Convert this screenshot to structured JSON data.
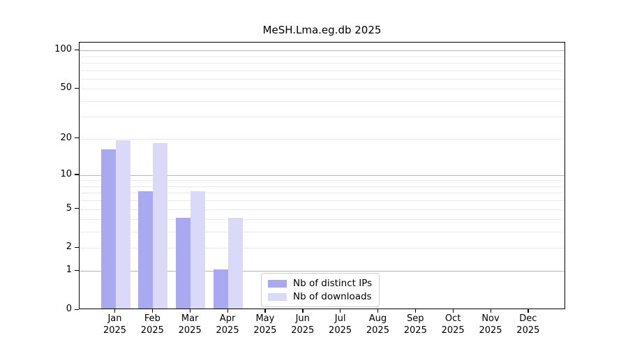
{
  "chart_data": {
    "type": "bar",
    "title": "MeSH.Lma.eg.db 2025",
    "categories": [
      "Jan",
      "Feb",
      "Mar",
      "Apr",
      "May",
      "Jun",
      "Jul",
      "Aug",
      "Sep",
      "Oct",
      "Nov",
      "Dec"
    ],
    "x_year_label": "2025",
    "series": [
      {
        "name": "Nb of distinct IPs",
        "color": "#a9a9f2",
        "values": [
          16,
          7,
          4,
          1,
          0,
          0,
          0,
          0,
          0,
          0,
          0,
          0
        ]
      },
      {
        "name": "Nb of downloads",
        "color": "#dadaf8",
        "values": [
          19,
          18,
          7,
          4,
          0,
          0,
          0,
          0,
          0,
          0,
          0,
          0
        ]
      }
    ],
    "yscale": "log1p",
    "ylim": [
      0,
      115
    ],
    "ylabel": "",
    "xlabel": "",
    "grid": true,
    "legend_position": "bottom-center",
    "y_tick_values": [
      0,
      1,
      2,
      5,
      10,
      20,
      50,
      100
    ],
    "y_tick_labels": [
      "0",
      "1",
      "2",
      "5",
      "10",
      "20",
      "50",
      "100"
    ],
    "y_major_gridlines": [
      1,
      10,
      100
    ],
    "y_minor_gridlines": [
      2,
      3,
      4,
      5,
      6,
      7,
      8,
      9,
      20,
      30,
      40,
      50,
      60,
      70,
      80,
      90
    ]
  },
  "colors": {
    "bar_distinct_ips": "#a9a9f2",
    "bar_downloads": "#dadaf8",
    "grid_major": "#b5b5b5",
    "grid_minor": "#eaeaea",
    "spine": "#000000",
    "legend_border": "#cccccc",
    "background": "#ffffff",
    "text": "#000000"
  }
}
